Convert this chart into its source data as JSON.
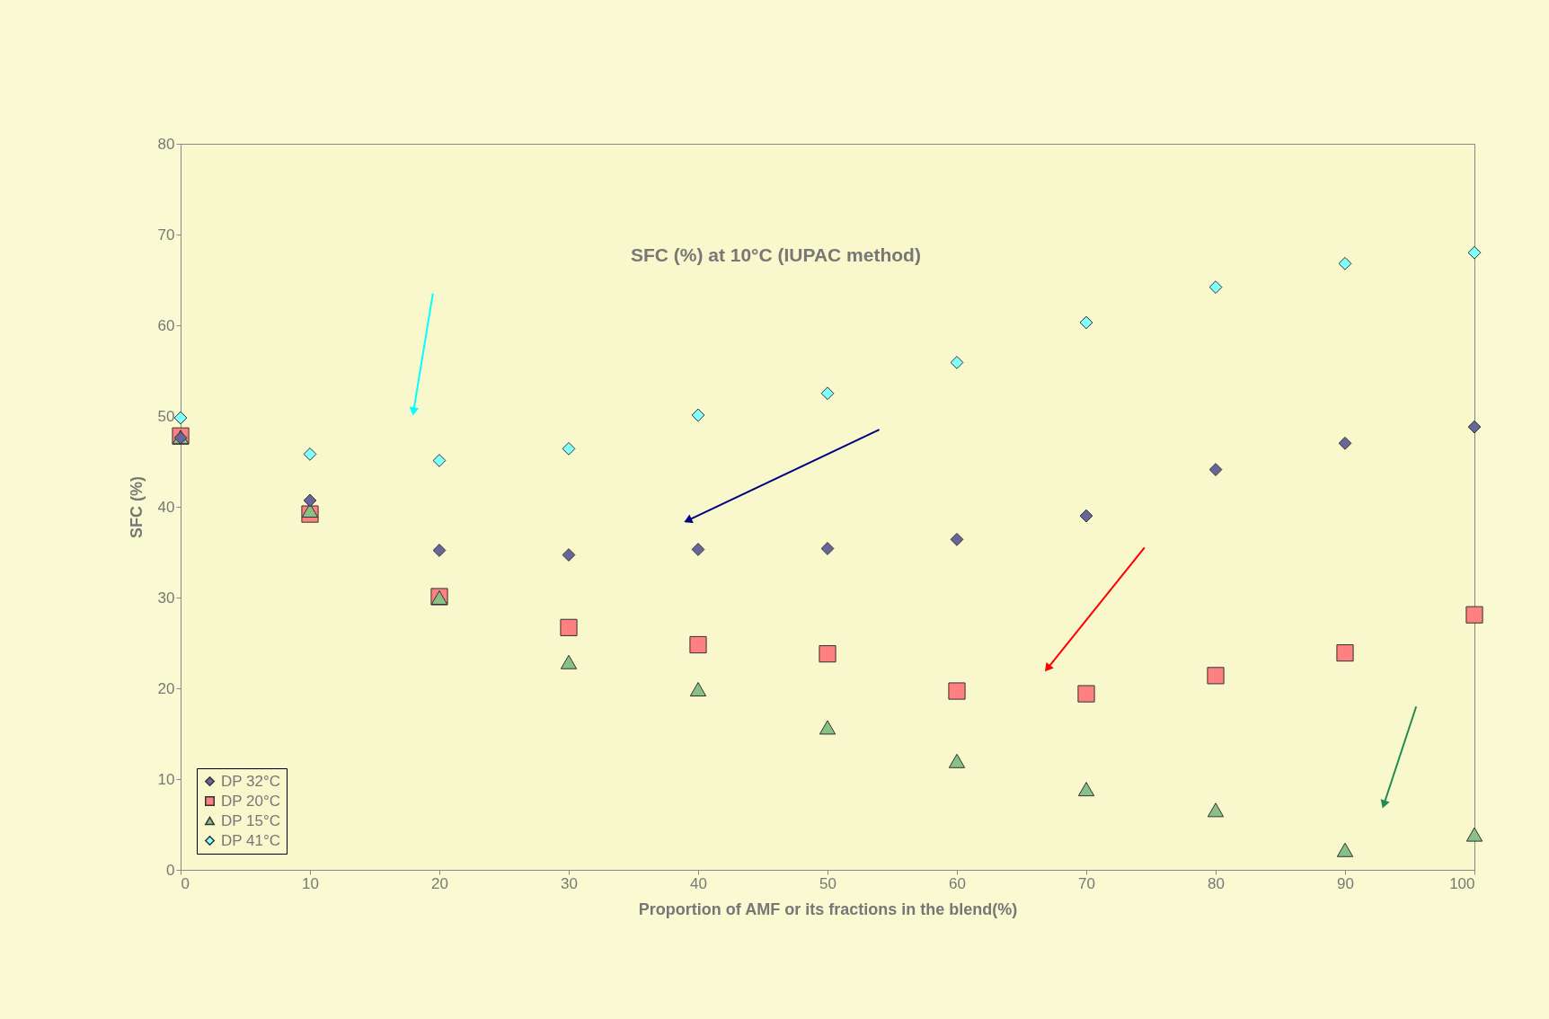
{
  "chart_data": {
    "type": "scatter",
    "title": "SFC (%) at 10°C (IUPAC method)",
    "xlabel": "Proportion of AMF or its fractions in the blend(%)",
    "ylabel": "SFC (%)",
    "x": [
      0,
      10,
      20,
      30,
      40,
      50,
      60,
      70,
      80,
      90,
      100
    ],
    "series": [
      {
        "name": "DP 32°C",
        "color": "#666699",
        "marker": "diamond",
        "values": [
          47.6,
          40.7,
          35.2,
          34.7,
          35.3,
          35.4,
          36.4,
          39.0,
          44.1,
          47.0,
          48.8
        ]
      },
      {
        "name": "DP 20°C",
        "color": "#ff8080",
        "marker": "square",
        "values": [
          47.8,
          39.2,
          30.1,
          26.7,
          24.8,
          23.8,
          19.7,
          19.4,
          21.4,
          23.9,
          28.1
        ]
      },
      {
        "name": "DP 15°C",
        "color": "#88c088",
        "marker": "triangle",
        "values": [
          47.7,
          39.6,
          30.0,
          22.9,
          19.9,
          15.7,
          12.0,
          8.9,
          6.6,
          2.2,
          3.9
        ]
      },
      {
        "name": "DP 41°C",
        "color": "#80ffff",
        "marker": "diamond",
        "values": [
          49.8,
          45.8,
          45.1,
          46.4,
          50.1,
          52.5,
          55.9,
          60.3,
          64.2,
          66.8,
          68.0
        ]
      }
    ],
    "xlim": [
      0,
      100
    ],
    "ylim": [
      0,
      80
    ],
    "xticks": [
      0,
      10,
      20,
      30,
      40,
      50,
      60,
      70,
      80,
      90,
      100
    ],
    "yticks": [
      0,
      10,
      20,
      30,
      40,
      50,
      60,
      70,
      80
    ],
    "grid": false,
    "legend": "bottom left"
  }
}
